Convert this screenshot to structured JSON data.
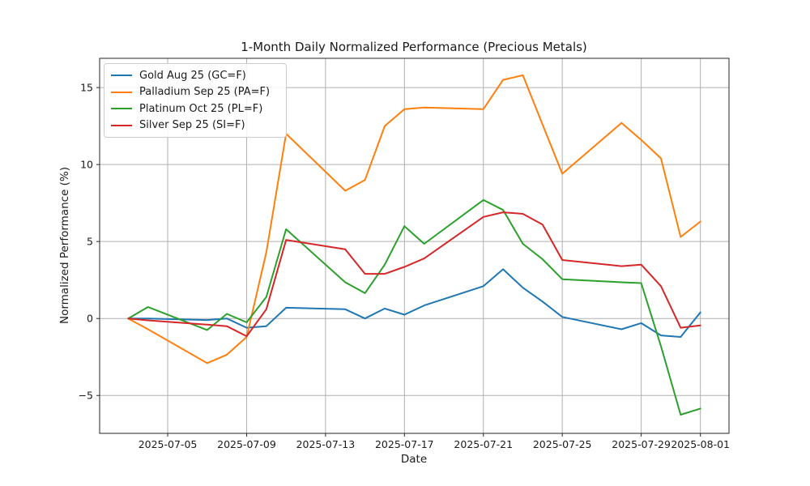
{
  "chart_data": {
    "type": "line",
    "title": "1-Month Daily Normalized Performance (Precious Metals)",
    "xlabel": "Date",
    "ylabel": "Normalized Performance (%)",
    "grid": true,
    "legend_position": "upper left",
    "xlim_days": [
      -1.45,
      30.45
    ],
    "ylim": [
      -7.46,
      16.9
    ],
    "y_ticks": [
      -5,
      0,
      5,
      10,
      15
    ],
    "y_tick_labels": [
      "−5",
      "0",
      "5",
      "10",
      "15"
    ],
    "x_tick_dates": [
      "2025-07-05",
      "2025-07-09",
      "2025-07-13",
      "2025-07-17",
      "2025-07-21",
      "2025-07-25",
      "2025-07-29",
      "2025-08-01"
    ],
    "x_dates": [
      "2025-07-03",
      "2025-07-04",
      "2025-07-07",
      "2025-07-08",
      "2025-07-09",
      "2025-07-10",
      "2025-07-11",
      "2025-07-14",
      "2025-07-15",
      "2025-07-16",
      "2025-07-17",
      "2025-07-18",
      "2025-07-21",
      "2025-07-22",
      "2025-07-23",
      "2025-07-24",
      "2025-07-25",
      "2025-07-28",
      "2025-07-29",
      "2025-07-30",
      "2025-07-31",
      "2025-08-01"
    ],
    "series": [
      {
        "name": "Gold Aug 25 (GC=F)",
        "color": "#1f77b4",
        "values": [
          0,
          0.0,
          -0.1,
          0.0,
          -0.6,
          -0.5,
          0.7,
          0.6,
          0.0,
          0.65,
          0.25,
          0.85,
          2.1,
          3.2,
          2.0,
          1.1,
          0.1,
          -0.7,
          -0.3,
          -1.1,
          -1.2,
          0.4
        ]
      },
      {
        "name": "Palladium Sep 25 (PA=F)",
        "color": "#ff7f0e",
        "values": [
          0,
          -0.7,
          -2.9,
          -2.35,
          -1.2,
          4.3,
          12.0,
          8.3,
          9.0,
          12.5,
          13.6,
          13.7,
          13.6,
          15.5,
          15.8,
          12.6,
          9.4,
          12.7,
          11.6,
          10.4,
          5.3,
          6.3
        ]
      },
      {
        "name": "Platinum Oct 25 (PL=F)",
        "color": "#2ca02c",
        "values": [
          0,
          0.75,
          -0.75,
          0.3,
          -0.25,
          1.4,
          5.8,
          2.35,
          1.65,
          3.5,
          6.0,
          4.85,
          7.7,
          7.05,
          4.85,
          3.85,
          2.55,
          2.35,
          2.3,
          -1.8,
          -6.25,
          -5.85
        ]
      },
      {
        "name": "Silver Sep 25 (SI=F)",
        "color": "#d62728",
        "values": [
          0,
          -0.12,
          -0.4,
          -0.5,
          -1.15,
          0.6,
          5.1,
          4.5,
          2.9,
          2.9,
          3.35,
          3.9,
          6.6,
          6.9,
          6.8,
          6.1,
          3.8,
          3.4,
          3.5,
          2.1,
          -0.6,
          -0.45
        ]
      }
    ],
    "style": {
      "grid_color": "#b0b0b0",
      "spine_color": "#262626",
      "background": "#ffffff",
      "line_width": 2
    }
  }
}
